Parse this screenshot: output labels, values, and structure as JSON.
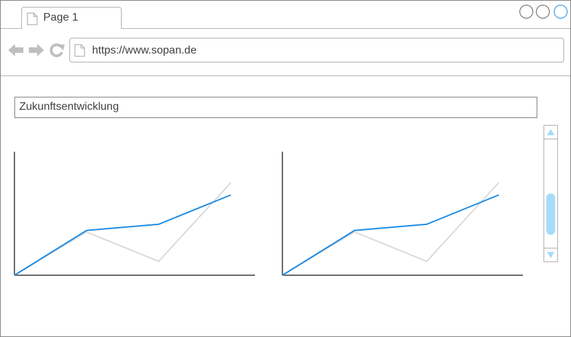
{
  "tab": {
    "label": "Page 1",
    "icon": "page-icon"
  },
  "window_controls": [
    "minimize-circle-icon",
    "maximize-circle-icon",
    "close-circle-icon"
  ],
  "nav": {
    "back_icon": "arrow-left-icon",
    "forward_icon": "arrow-right-icon",
    "reload_icon": "reload-icon"
  },
  "address": {
    "url": "https://www.sopan.de",
    "icon": "page-icon"
  },
  "main": {
    "title": "Zukunftsentwicklung"
  },
  "colors": {
    "accent": "#1a8be6",
    "secondary": "#d9d9d9",
    "scroll_thumb": "#a6dcfa",
    "axis": "#666666"
  },
  "chart_data": [
    {
      "type": "line",
      "x": [
        0,
        1,
        2,
        3
      ],
      "series": [
        {
          "values": [
            0,
            2.8,
            0.9,
            6.0
          ]
        },
        {
          "values": [
            0,
            2.9,
            3.3,
            5.2
          ]
        }
      ],
      "ylim": [
        0,
        8
      ],
      "grid": false
    },
    {
      "type": "line",
      "x": [
        0,
        1,
        2,
        3
      ],
      "series": [
        {
          "values": [
            0,
            2.8,
            0.9,
            6.0
          ]
        },
        {
          "values": [
            0,
            2.9,
            3.3,
            5.2
          ]
        }
      ],
      "ylim": [
        0,
        8
      ],
      "grid": false
    }
  ]
}
